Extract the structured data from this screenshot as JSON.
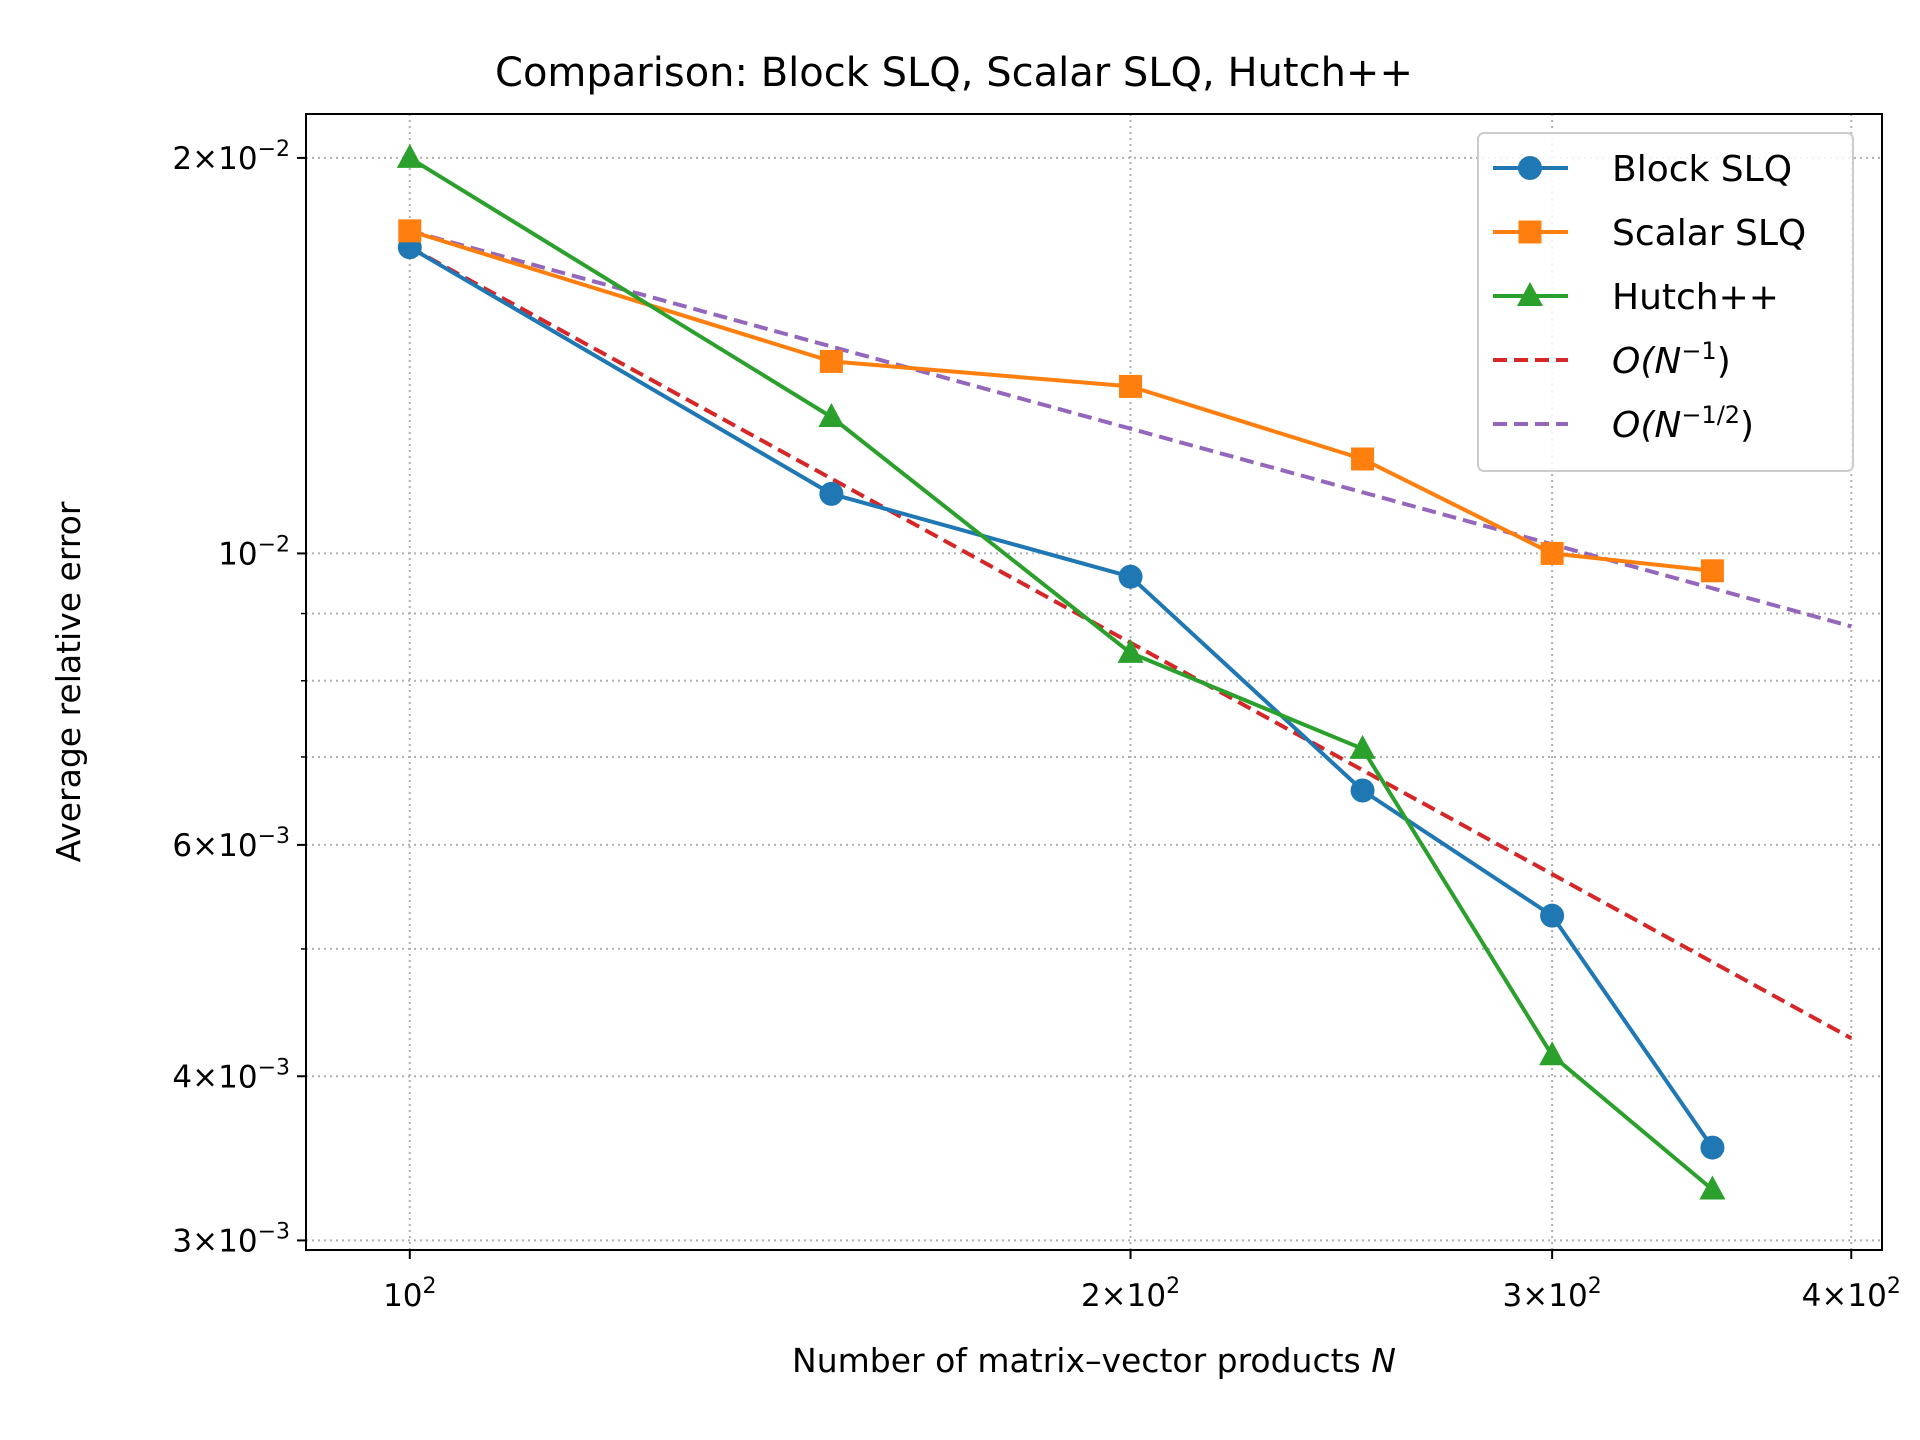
{
  "chart_data": {
    "type": "line",
    "title": "Comparison: Block SLQ, Scalar SLQ, Hutch++",
    "xlabel": "Number of matrix–vector products ",
    "xlabel_var": "N",
    "ylabel": "Average relative error",
    "xscale": "log",
    "yscale": "log",
    "xlim": [
      90.5,
      412
    ],
    "ylim": [
      0.00295,
      0.0216
    ],
    "grid": true,
    "legend_position": "top-right",
    "x_ticks": [
      {
        "value": 100,
        "base": "10",
        "exp": "2"
      },
      {
        "value": 200,
        "base": "2×10",
        "exp": "2"
      },
      {
        "value": 300,
        "base": "3×10",
        "exp": "2"
      },
      {
        "value": 400,
        "base": "4×10",
        "exp": "2"
      }
    ],
    "y_ticks": [
      {
        "value": 0.02,
        "base": "2×10",
        "exp": "−2"
      },
      {
        "value": 0.01,
        "base": "10",
        "exp": "−2"
      },
      {
        "value": 0.006,
        "base": "6×10",
        "exp": "−3"
      },
      {
        "value": 0.004,
        "base": "4×10",
        "exp": "−3"
      },
      {
        "value": 0.003,
        "base": "3×10",
        "exp": "−3"
      }
    ],
    "y_minor_grid": [
      0.009,
      0.008,
      0.007,
      0.005
    ],
    "series": [
      {
        "name": "Block SLQ",
        "color": "#1f77b4",
        "marker": "circle",
        "style": "solid",
        "x": [
          100,
          150,
          200,
          250,
          300,
          350
        ],
        "y": [
          0.0171,
          0.0111,
          0.0096,
          0.0066,
          0.0053,
          0.00353
        ]
      },
      {
        "name": "Scalar SLQ",
        "color": "#ff7f0e",
        "marker": "square",
        "style": "solid",
        "x": [
          100,
          150,
          200,
          250,
          300,
          350
        ],
        "y": [
          0.0176,
          0.014,
          0.0134,
          0.0118,
          0.01,
          0.0097
        ]
      },
      {
        "name": "Hutch++",
        "color": "#2ca02c",
        "marker": "triangle",
        "style": "solid",
        "x": [
          100,
          150,
          200,
          250,
          300,
          350
        ],
        "y": [
          0.02,
          0.0127,
          0.0084,
          0.0071,
          0.00415,
          0.00328
        ]
      },
      {
        "name": "O(N^-1)",
        "legend_main": "O(N",
        "legend_sup": "−1",
        "legend_end": ")",
        "color": "#d62728",
        "marker": "none",
        "style": "dashed",
        "x": [
          100,
          400
        ],
        "y": [
          0.0171,
          0.004275
        ]
      },
      {
        "name": "O(N^-1/2)",
        "legend_main": "O(N",
        "legend_sup": "−1/2",
        "legend_end": ")",
        "color": "#9467bd",
        "marker": "none",
        "style": "dashed",
        "x": [
          100,
          400
        ],
        "y": [
          0.0176,
          0.0088
        ]
      }
    ]
  }
}
